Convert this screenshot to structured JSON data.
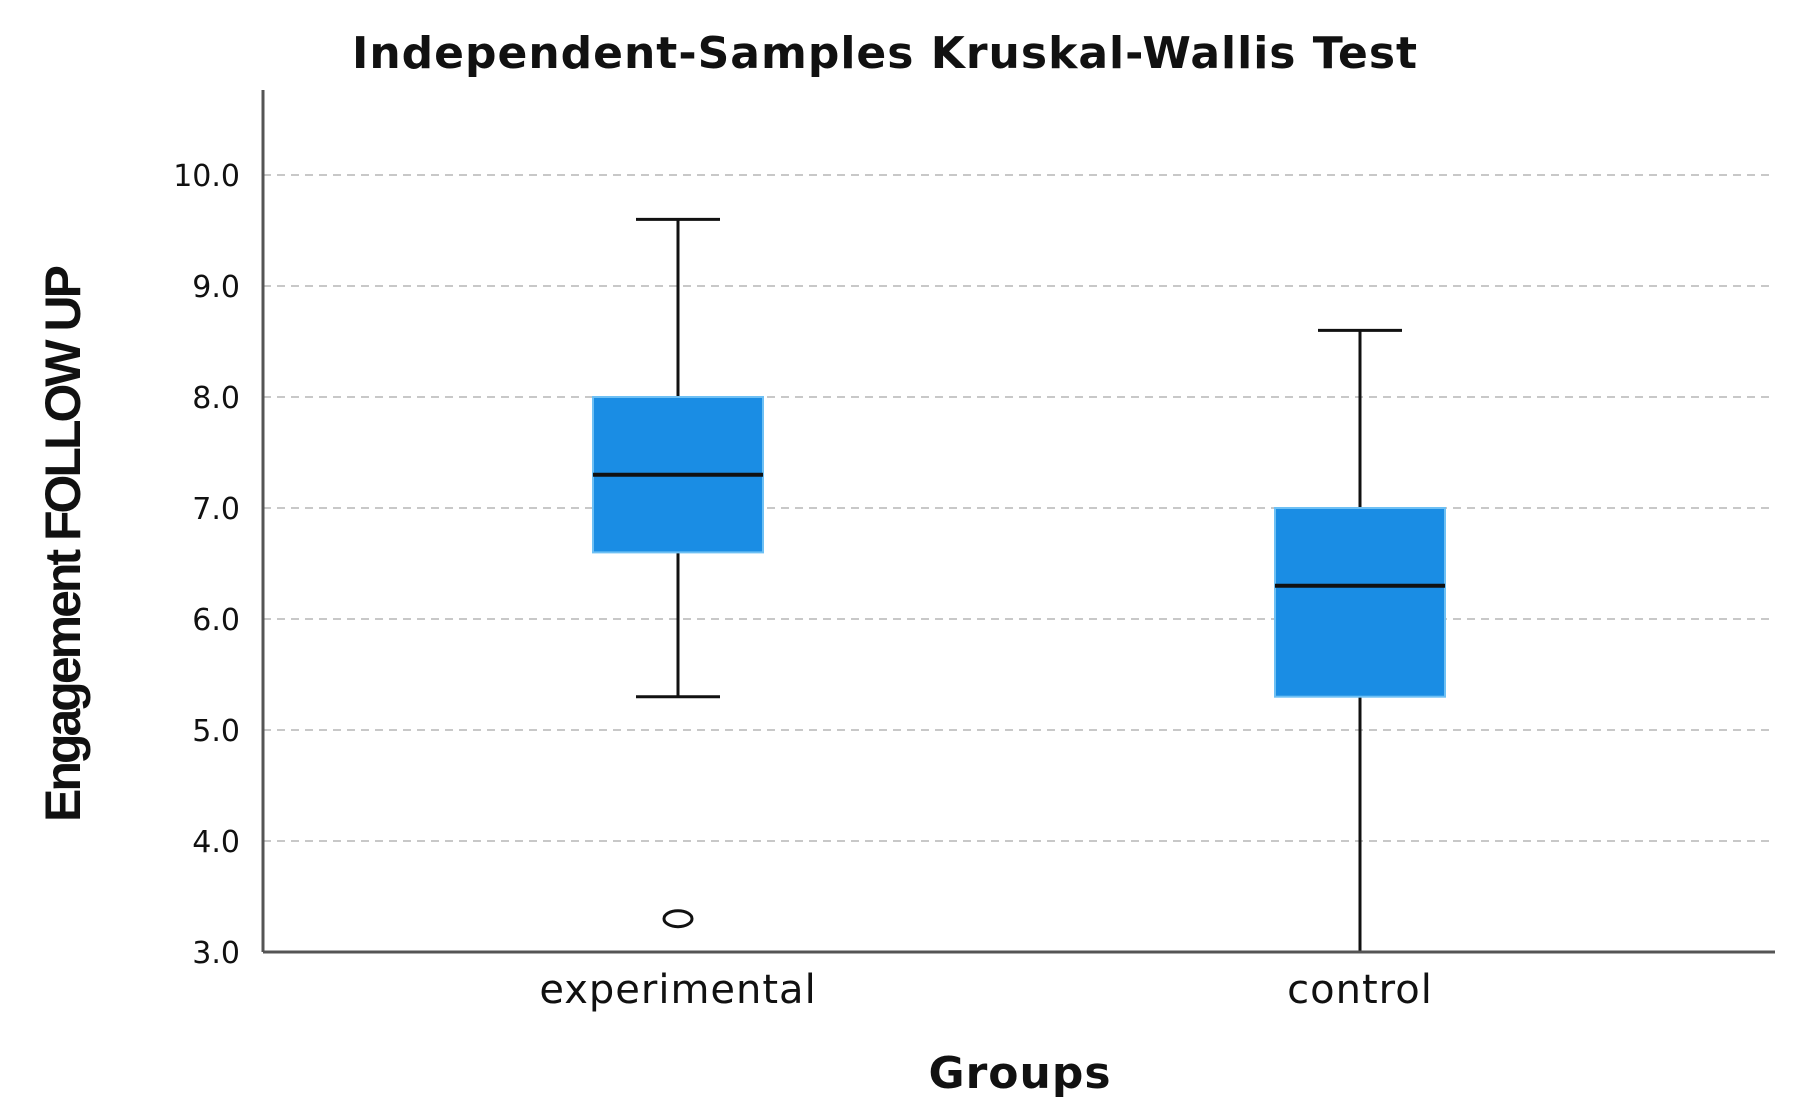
{
  "chart_data": {
    "type": "box",
    "title": "Independent-Samples Kruskal-Wallis Test",
    "xlabel": "Groups",
    "ylabel": "Engagement FOLLOW UP",
    "ylim": [
      3.0,
      10.8
    ],
    "yticks": [
      "3.0",
      "4.0",
      "5.0",
      "6.0",
      "7.0",
      "8.0",
      "9.0",
      "10.0"
    ],
    "ytick_values": [
      3,
      4,
      5,
      6,
      7,
      8,
      9,
      10
    ],
    "grid": true,
    "box_color": "#1a8de4",
    "categories": [
      "experimental",
      "control"
    ],
    "boxes": [
      {
        "category": "experimental",
        "whisker_low": 5.3,
        "q1": 6.6,
        "median": 7.3,
        "q3": 8.0,
        "whisker_high": 9.6,
        "outliers": [
          3.3
        ]
      },
      {
        "category": "control",
        "whisker_low": 3.0,
        "q1": 5.3,
        "median": 6.3,
        "q3": 7.0,
        "whisker_high": 8.6,
        "outliers": []
      }
    ]
  }
}
